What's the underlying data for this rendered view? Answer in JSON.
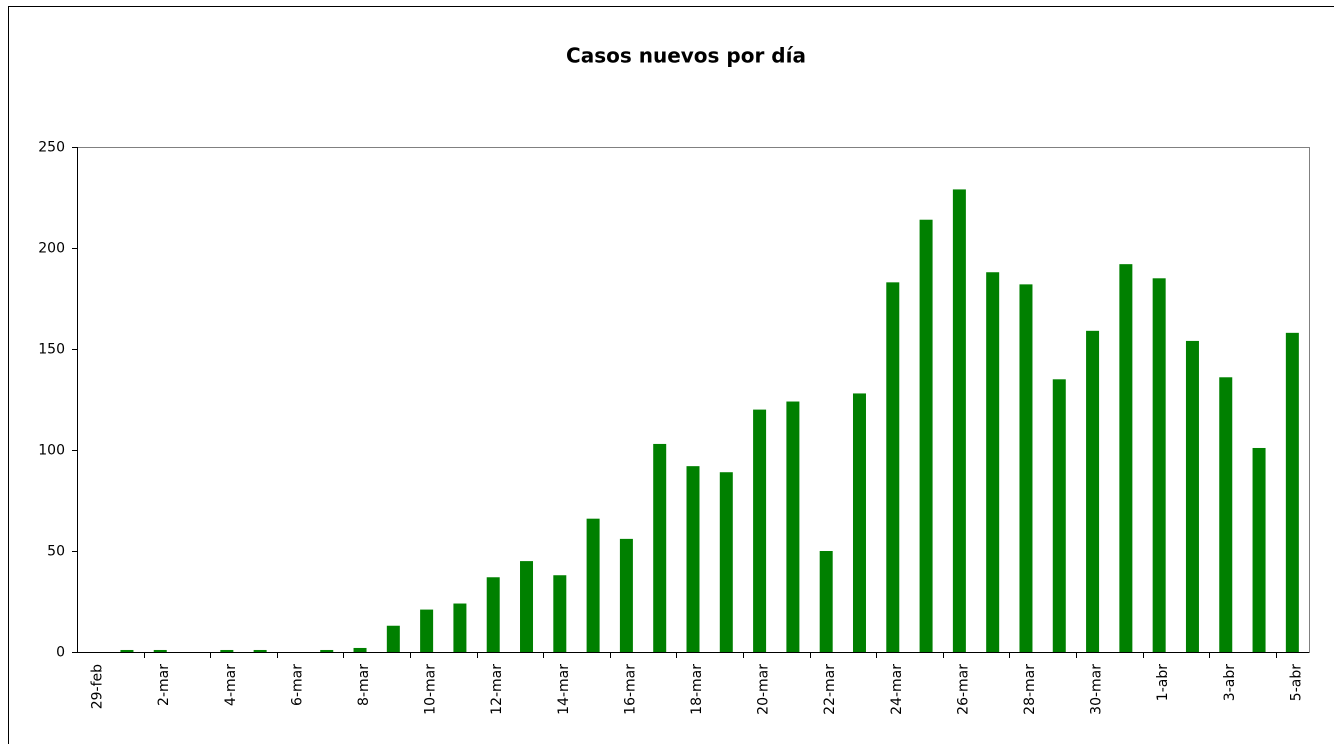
{
  "chart_data": {
    "type": "bar",
    "title": "Casos nuevos por día",
    "categories": [
      "29-feb",
      null,
      "2-mar",
      null,
      "4-mar",
      null,
      "6-mar",
      null,
      "8-mar",
      null,
      "10-mar",
      null,
      "12-mar",
      null,
      "14-mar",
      null,
      "16-mar",
      null,
      "18-mar",
      null,
      "20-mar",
      null,
      "22-mar",
      null,
      "24-mar",
      null,
      "26-mar",
      null,
      "28-mar",
      null,
      "30-mar",
      null,
      "1-abr",
      null,
      "3-abr",
      null,
      "5-abr"
    ],
    "values": [
      0,
      1,
      1,
      0,
      1,
      1,
      0,
      1,
      2,
      13,
      21,
      24,
      37,
      45,
      38,
      66,
      56,
      103,
      92,
      89,
      120,
      124,
      50,
      128,
      183,
      214,
      229,
      188,
      182,
      135,
      159,
      192,
      185,
      154,
      136,
      101,
      158
    ],
    "color": "#008000",
    "ylim": [
      0,
      250
    ],
    "yticks": [
      0,
      50,
      100,
      150,
      200,
      250
    ],
    "grid": false
  }
}
